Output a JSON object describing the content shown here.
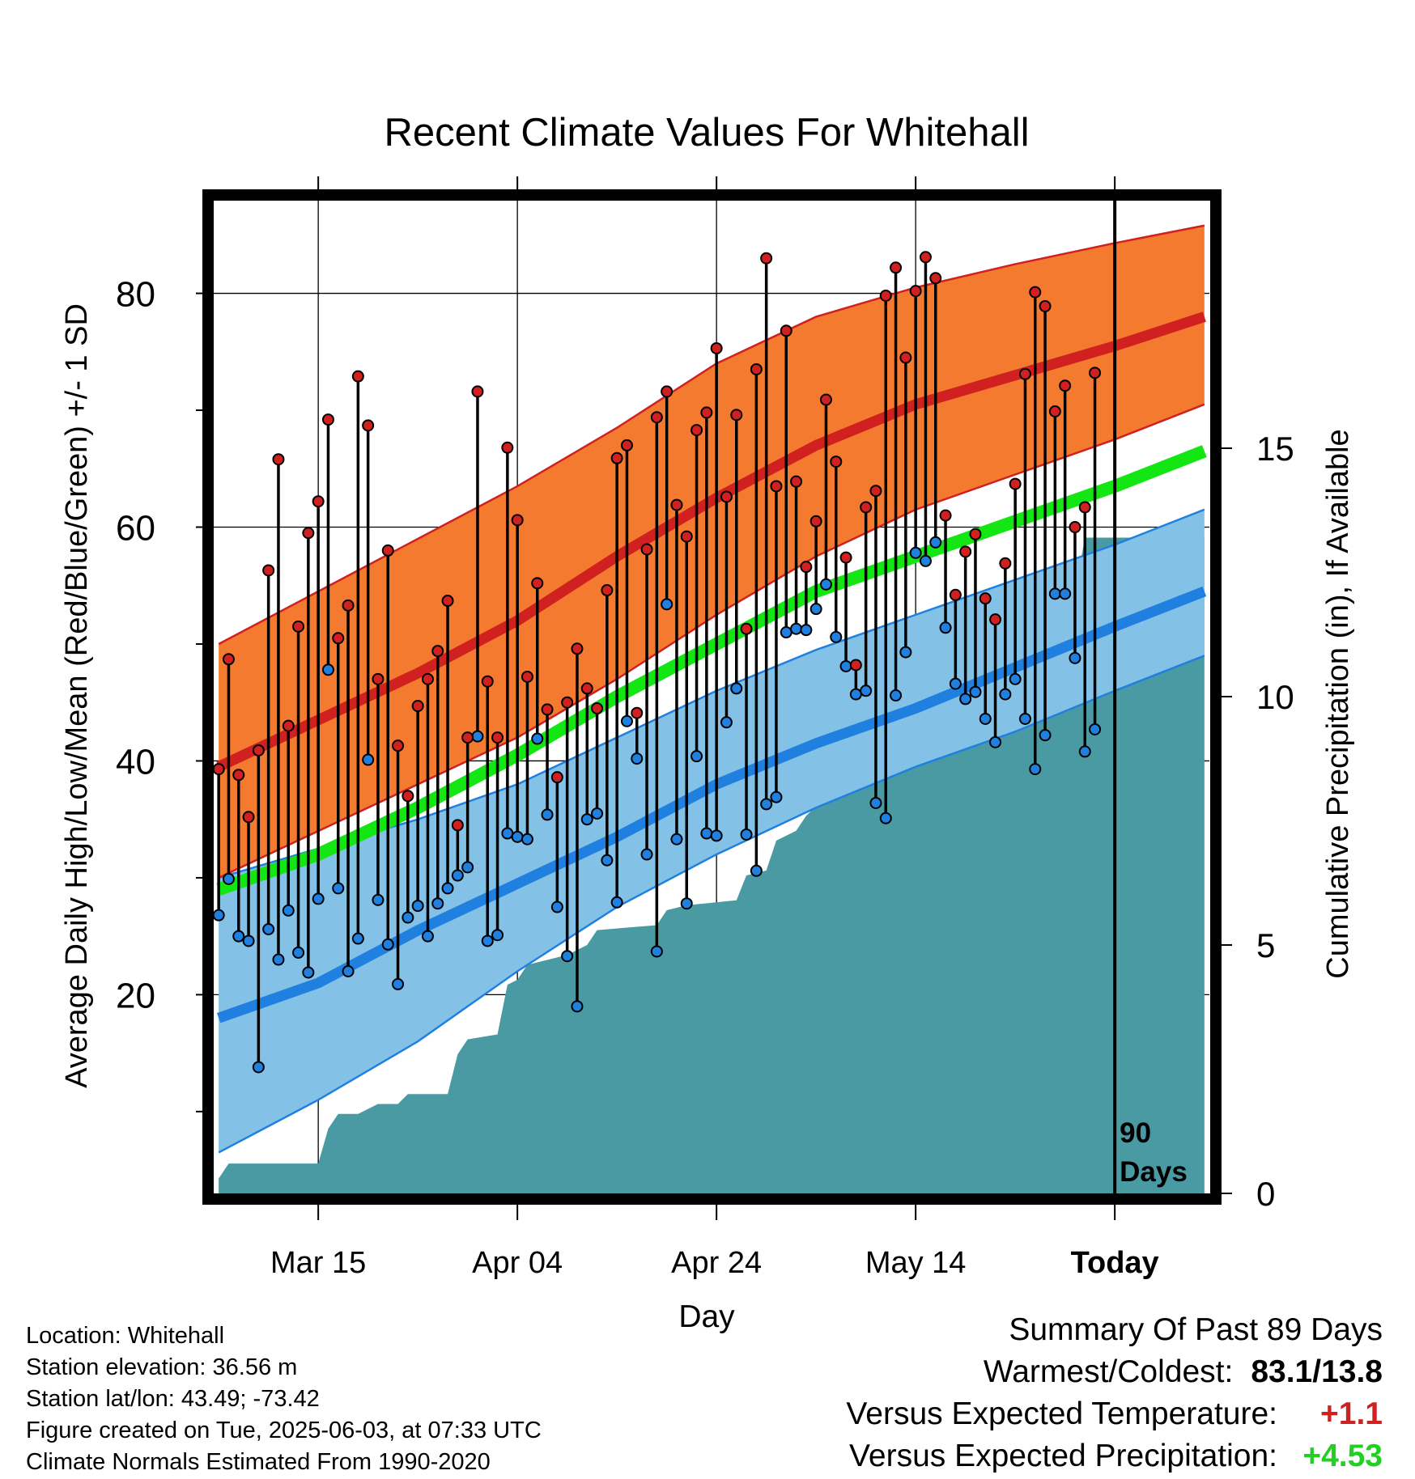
{
  "chart_data": {
    "type": "line",
    "title": "Recent Climate Values For Whitehall",
    "xlabel": "Day",
    "ylabel": "Average Daily High/Low/Mean (Red/Blue/Green) +/- 1 SD",
    "y2label": "Cumulative Precipitation (in), If Available",
    "ylim": [
      3,
      88
    ],
    "y2lim": [
      0,
      20
    ],
    "xlim": [
      -0.5,
      99.5
    ],
    "x_day0": "Mar 05",
    "y_ticks": [
      "20",
      "40",
      "60",
      "80"
    ],
    "y_tick_values": [
      20,
      40,
      60,
      80
    ],
    "y2_ticks": [
      "0",
      "5",
      "10",
      "15"
    ],
    "y2_tick_values": [
      0,
      5,
      10,
      15
    ],
    "x_ticks": [
      {
        "label": "Mar 15",
        "day": 10
      },
      {
        "label": "Apr 04",
        "day": 30
      },
      {
        "label": "Apr 24",
        "day": 50
      },
      {
        "label": "May 14",
        "day": 70
      },
      {
        "label": "Today",
        "day": 90
      }
    ],
    "today_day": 90,
    "period_label": [
      "90",
      "Days"
    ],
    "normals": {
      "days": [
        0,
        10,
        20,
        30,
        40,
        50,
        60,
        70,
        80,
        90,
        99
      ],
      "high_mean": [
        39.5,
        43.5,
        47.5,
        52.0,
        57.5,
        62.5,
        67.0,
        70.5,
        73.0,
        75.5,
        78.0
      ],
      "high_upper": [
        50.0,
        54.5,
        59.0,
        63.5,
        68.5,
        74.0,
        78.0,
        80.5,
        82.5,
        84.3,
        85.8
      ],
      "high_lower": [
        30.0,
        34.0,
        38.0,
        42.0,
        47.0,
        52.5,
        57.5,
        61.5,
        64.5,
        67.5,
        70.5
      ],
      "low_mean": [
        18.0,
        21.0,
        25.5,
        29.5,
        33.5,
        38.0,
        41.5,
        44.5,
        48.0,
        51.5,
        54.5
      ],
      "low_upper": [
        30.0,
        32.5,
        35.0,
        38.0,
        42.0,
        46.0,
        49.5,
        52.5,
        55.5,
        58.5,
        61.5
      ],
      "low_lower": [
        6.5,
        11.0,
        16.0,
        22.0,
        27.5,
        32.0,
        36.0,
        39.5,
        42.5,
        46.0,
        49.0
      ],
      "mean_mean": [
        29.0,
        32.0,
        36.0,
        40.5,
        45.5,
        50.0,
        54.5,
        57.5,
        60.5,
        63.5,
        66.5
      ]
    },
    "series": [
      {
        "name": "Daily High",
        "color": "#d02020",
        "values": [
          39.3,
          48.7,
          38.8,
          35.2,
          40.9,
          56.3,
          65.8,
          43.0,
          51.5,
          59.5,
          62.2,
          69.2,
          50.5,
          53.3,
          72.9,
          68.7,
          47.0,
          58.0,
          41.3,
          37.0,
          44.7,
          47.0,
          49.4,
          53.7,
          34.5,
          42.0,
          71.6,
          46.8,
          42.0,
          66.8,
          60.6,
          47.2,
          55.2,
          44.4,
          38.6,
          45.0,
          49.6,
          46.2,
          44.5,
          54.6,
          65.9,
          67.0,
          44.1,
          58.1,
          69.4,
          71.6,
          61.9,
          59.2,
          68.3,
          69.8,
          75.3,
          62.6,
          69.6,
          51.3,
          73.5,
          83.0,
          63.5,
          76.8,
          63.9,
          56.6,
          60.5,
          70.9,
          65.6,
          57.4,
          48.2,
          61.7,
          63.1,
          79.8,
          82.2,
          74.5,
          80.2,
          83.1,
          81.3,
          61.0,
          54.2,
          57.9,
          59.4,
          53.9,
          52.1,
          56.9,
          63.7,
          73.1,
          80.1,
          78.9,
          69.9,
          72.1,
          60.0,
          61.7,
          73.2
        ]
      },
      {
        "name": "Daily Low",
        "color": "#2080e0",
        "values": [
          26.8,
          29.9,
          25.0,
          24.6,
          13.8,
          25.6,
          23.0,
          27.2,
          23.6,
          21.9,
          28.2,
          47.8,
          29.1,
          22.0,
          24.8,
          40.1,
          28.1,
          24.3,
          20.9,
          26.6,
          27.6,
          25.0,
          27.8,
          29.1,
          30.2,
          30.9,
          42.1,
          24.6,
          25.1,
          33.8,
          33.5,
          33.3,
          41.9,
          35.4,
          27.5,
          23.3,
          19.0,
          35.0,
          35.5,
          31.5,
          27.9,
          43.4,
          40.2,
          32.0,
          23.7,
          53.4,
          33.3,
          27.8,
          40.4,
          33.8,
          33.6,
          43.3,
          46.2,
          33.7,
          30.6,
          36.3,
          36.9,
          51.0,
          51.3,
          51.2,
          53.0,
          55.1,
          50.6,
          48.1,
          45.7,
          46.0,
          36.4,
          35.1,
          45.6,
          49.3,
          57.8,
          57.1,
          58.7,
          51.4,
          46.6,
          45.3,
          45.9,
          43.6,
          41.6,
          45.7,
          47.0,
          43.6,
          39.3,
          42.2,
          54.3,
          54.3,
          48.8,
          40.8,
          42.7
        ]
      }
    ],
    "precip_cumulative": {
      "points": [
        [
          0,
          0.3
        ],
        [
          1,
          0.6
        ],
        [
          10,
          0.6
        ],
        [
          11,
          1.3
        ],
        [
          12,
          1.6
        ],
        [
          14,
          1.6
        ],
        [
          16,
          1.8
        ],
        [
          18,
          1.8
        ],
        [
          19,
          2.0
        ],
        [
          23,
          2.0
        ],
        [
          24,
          2.8
        ],
        [
          25,
          3.1
        ],
        [
          28,
          3.2
        ],
        [
          29,
          4.2
        ],
        [
          30,
          4.3
        ],
        [
          31,
          4.6
        ],
        [
          33,
          4.7
        ],
        [
          35,
          4.8
        ],
        [
          37,
          5.0
        ],
        [
          38,
          5.3
        ],
        [
          44,
          5.4
        ],
        [
          45,
          5.7
        ],
        [
          47,
          5.8
        ],
        [
          52,
          5.9
        ],
        [
          53,
          6.4
        ],
        [
          55,
          6.5
        ],
        [
          56,
          7.1
        ],
        [
          57,
          7.2
        ],
        [
          58,
          7.3
        ],
        [
          59,
          7.6
        ],
        [
          60,
          7.8
        ],
        [
          61,
          8.2
        ],
        [
          62,
          9.0
        ],
        [
          63,
          9.4
        ],
        [
          65,
          9.5
        ],
        [
          66,
          10.9
        ],
        [
          67,
          11.2
        ],
        [
          74,
          11.2
        ],
        [
          75,
          11.5
        ],
        [
          76,
          11.6
        ],
        [
          79,
          11.6
        ],
        [
          80,
          11.8
        ],
        [
          81,
          12.1
        ],
        [
          86,
          12.1
        ],
        [
          87,
          13.2
        ],
        [
          99,
          13.2
        ]
      ],
      "color": "#4a9aa3"
    }
  },
  "info": {
    "location": "Location: Whitehall",
    "elevation": "Station elevation: 36.56 m",
    "latlon": "Station lat/lon: 43.49; -73.42",
    "created": "Figure created on Tue, 2025-06-03, at 07:33 UTC",
    "normals": "Climate Normals Estimated From 1990-2020"
  },
  "summary": {
    "title": "Summary Of Past 89 Days",
    "warmest_label": "Warmest/Coldest:",
    "warmest_value": "83.1/13.8",
    "temp_label": "Versus Expected Temperature:",
    "temp_value": "+1.1",
    "temp_color": "#d02020",
    "precip_label": "Versus Expected Precipitation:",
    "precip_value": "+4.53",
    "precip_color": "#22d022"
  },
  "colors": {
    "high_band": "#f47a30",
    "high_line": "#d02020",
    "low_band": "#84c1e6",
    "low_line": "#2080e0",
    "mean_line": "#14e614",
    "precip_fill": "#4a9aa3"
  }
}
